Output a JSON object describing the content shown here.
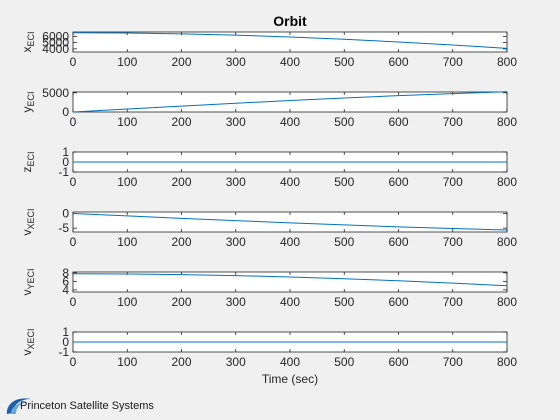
{
  "chart_data": {
    "type": "line",
    "title": "Orbit",
    "xlabel": "Time (sec)",
    "x": [
      0,
      100,
      200,
      300,
      400,
      500,
      600,
      700,
      800
    ],
    "xlim": [
      0,
      800
    ],
    "xticks": [
      "0",
      "100",
      "200",
      "300",
      "400",
      "500",
      "600",
      "700",
      "800"
    ],
    "line_color": "#0072bd",
    "grid": false,
    "subplots": [
      {
        "ylabel_main": "x",
        "ylabel_sub": "ECI",
        "ylim": [
          3500,
          6700
        ],
        "yticks": [
          4000,
          5000,
          6000
        ],
        "ytick_labels": [
          "4000",
          "5000",
          "6000"
        ],
        "values": [
          6578,
          6536,
          6408,
          6197,
          5907,
          5542,
          5109,
          4616,
          4071
        ]
      },
      {
        "ylabel_main": "y",
        "ylabel_sub": "ECI",
        "ylim": [
          0,
          5200
        ],
        "yticks": [
          0,
          5000
        ],
        "ytick_labels": [
          "0",
          "5000"
        ],
        "values": [
          0,
          775,
          1539,
          2279,
          2984,
          3643,
          4246,
          4785,
          5250
        ]
      },
      {
        "ylabel_main": "z",
        "ylabel_sub": "ECI",
        "ylim": [
          -1,
          1
        ],
        "yticks": [
          -1,
          0,
          1
        ],
        "ytick_labels": [
          "-1",
          "0",
          "1"
        ],
        "values": [
          0,
          0,
          0,
          0,
          0,
          0,
          0,
          0,
          0
        ]
      },
      {
        "ylabel_main": "v",
        "ylabel_sub": "XECI",
        "ylim": [
          -6.3,
          0.5
        ],
        "yticks": [
          -5,
          0
        ],
        "ytick_labels": [
          "-5",
          "0"
        ],
        "values": [
          0,
          -0.83,
          -1.65,
          -2.44,
          -3.19,
          -3.89,
          -4.54,
          -5.12,
          -5.61
        ]
      },
      {
        "ylabel_main": "v",
        "ylabel_sub": "YECI",
        "ylim": [
          3.5,
          8.2
        ],
        "yticks": [
          4,
          6,
          8
        ],
        "ytick_labels": [
          "4",
          "6",
          "8"
        ],
        "values": [
          7.78,
          7.73,
          7.59,
          7.36,
          7.03,
          6.62,
          6.13,
          5.58,
          4.96
        ]
      },
      {
        "ylabel_main": "v",
        "ylabel_sub": "XECI",
        "ylim": [
          -1,
          1
        ],
        "yticks": [
          -1,
          0,
          1
        ],
        "ytick_labels": [
          "-1",
          "0",
          "1"
        ],
        "values": [
          0,
          0,
          0,
          0,
          0,
          0,
          0,
          0,
          0
        ]
      }
    ]
  },
  "logo": {
    "text": "Princeton Satellite Systems",
    "icon": "psslogo-icon",
    "color": "#1f5fa8"
  }
}
